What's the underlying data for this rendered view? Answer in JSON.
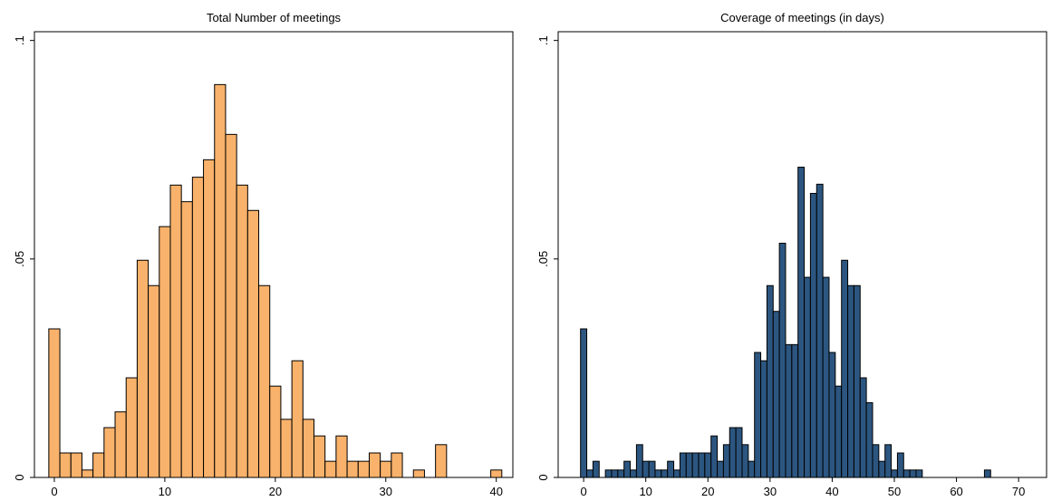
{
  "chart_data": [
    {
      "type": "histogram",
      "title": "Total Number of meetings",
      "bins": [
        -0.5,
        0.5,
        1.5,
        2.5,
        3.5,
        4.5,
        5.5,
        6.5,
        7.5,
        8.5,
        9.5,
        10.5,
        11.5,
        12.5,
        13.5,
        14.5,
        15.5,
        16.5,
        17.5,
        18.5,
        19.5,
        20.5,
        21.5,
        22.5,
        23.5,
        24.5,
        25.5,
        26.5,
        27.5,
        28.5,
        29.5,
        30.5,
        31.5,
        32.5,
        33.5,
        34.5,
        35.5,
        36.5,
        37.5,
        38.5,
        39.5,
        40.5
      ],
      "values": [
        0.034,
        0.0056,
        0.0056,
        0.0017,
        0.0056,
        0.0114,
        0.015,
        0.0228,
        0.0497,
        0.0439,
        0.0574,
        0.0669,
        0.0631,
        0.0687,
        0.0727,
        0.0899,
        0.0785,
        0.0669,
        0.0611,
        0.0439,
        0.0209,
        0.0133,
        0.0267,
        0.0133,
        0.0095,
        0.0037,
        0.0095,
        0.0037,
        0.0037,
        0.0056,
        0.0037,
        0.0056,
        0,
        0.0017,
        0,
        0.0075,
        0,
        0,
        0,
        0,
        0.0017
      ],
      "color": "#f9b26b",
      "xlim": [
        -1.8,
        41.5
      ],
      "xticks": [
        0,
        10,
        20,
        30,
        40
      ],
      "ylim": [
        0,
        0.102
      ],
      "yticks": [
        0,
        {
          "value": 0.05,
          "label": ".05"
        },
        {
          "value": 0.1,
          "label": ".1"
        }
      ]
    },
    {
      "type": "histogram",
      "title": "Coverage of meetings (in days)",
      "bins": [
        -0.5,
        0.5,
        1.5,
        2.5,
        3.5,
        4.5,
        5.5,
        6.5,
        7.5,
        8.5,
        9.5,
        10.5,
        11.5,
        12.5,
        13.5,
        14.5,
        15.5,
        16.5,
        17.5,
        18.5,
        19.5,
        20.5,
        21.5,
        22.5,
        23.5,
        24.5,
        25.5,
        26.5,
        27.5,
        28.5,
        29.5,
        30.5,
        31.5,
        32.5,
        33.5,
        34.5,
        35.5,
        36.5,
        37.5,
        38.5,
        39.5,
        40.5,
        41.5,
        42.5,
        43.5,
        44.5,
        45.5,
        46.5,
        47.5,
        48.5,
        49.5,
        50.5,
        51.5,
        52.5,
        53.5,
        54.5,
        55.5,
        56.5,
        57.5,
        58.5,
        59.5,
        60.5,
        61.5,
        62.5,
        63.5,
        64.5,
        65.5
      ],
      "values": [
        0.034,
        0.0017,
        0.0037,
        0,
        0.0017,
        0.0017,
        0.0017,
        0.0037,
        0.0017,
        0.0075,
        0.0037,
        0.0037,
        0.0017,
        0.0017,
        0.0037,
        0.0017,
        0.0056,
        0.0056,
        0.0056,
        0.0056,
        0.0056,
        0.0095,
        0.0037,
        0.0075,
        0.0114,
        0.0114,
        0.0075,
        0.0037,
        0.0286,
        0.0267,
        0.0439,
        0.038,
        0.0536,
        0.0304,
        0.0304,
        0.071,
        0.0458,
        0.065,
        0.0671,
        0.0458,
        0.0286,
        0.0209,
        0.0497,
        0.0439,
        0.0439,
        0.0228,
        0.0171,
        0.0075,
        0.0037,
        0.0075,
        0.0017,
        0.0056,
        0.0017,
        0.0017,
        0.0017,
        0,
        0,
        0,
        0,
        0,
        0,
        0,
        0,
        0,
        0,
        0.0017
      ],
      "color": "#2c5680",
      "xlim": [
        -4.1,
        74.5
      ],
      "xticks": [
        0,
        10,
        20,
        30,
        40,
        50,
        60,
        70
      ],
      "ylim": [
        0,
        0.102
      ],
      "yticks": [
        0,
        {
          "value": 0.05,
          "label": ".05"
        },
        {
          "value": 0.1,
          "label": ".1"
        }
      ]
    }
  ]
}
